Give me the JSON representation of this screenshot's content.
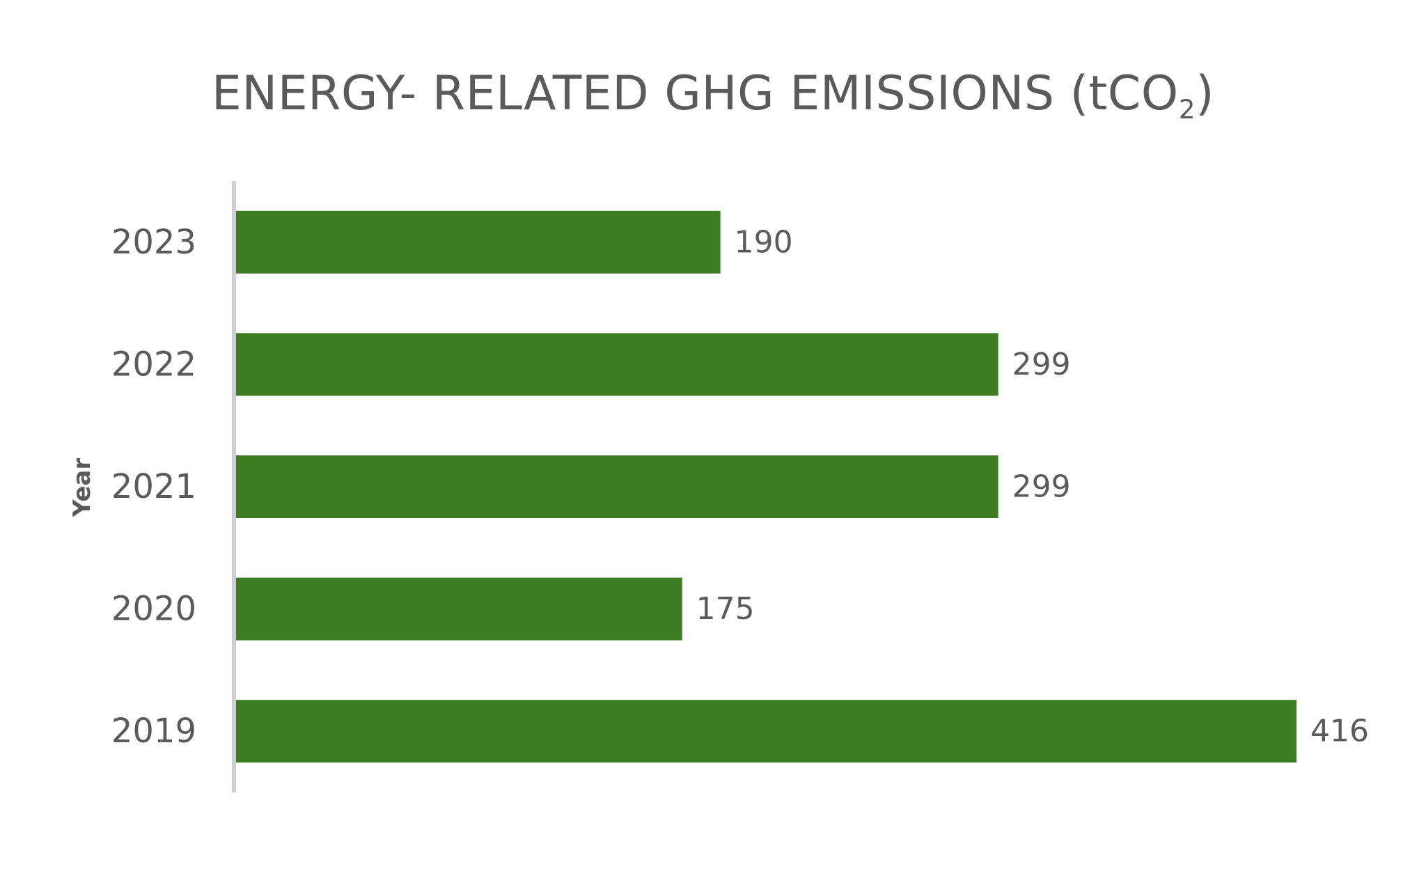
{
  "chart_data": {
    "type": "bar",
    "orientation": "horizontal",
    "title_main": "ENERGY- RELATED GHG EMISSIONS (tCO",
    "title_sub": "2",
    "title_end": ")",
    "ylabel": "Year",
    "categories": [
      "2023",
      "2022",
      "2021",
      "2020",
      "2019"
    ],
    "values": [
      190,
      299,
      299,
      175,
      416
    ],
    "xlim": [
      0,
      416
    ],
    "grid": false,
    "legend": "none",
    "bar_color": "#3c7d23",
    "text_color": "#5a5a5a",
    "axis_color": "#d0d0d0"
  }
}
